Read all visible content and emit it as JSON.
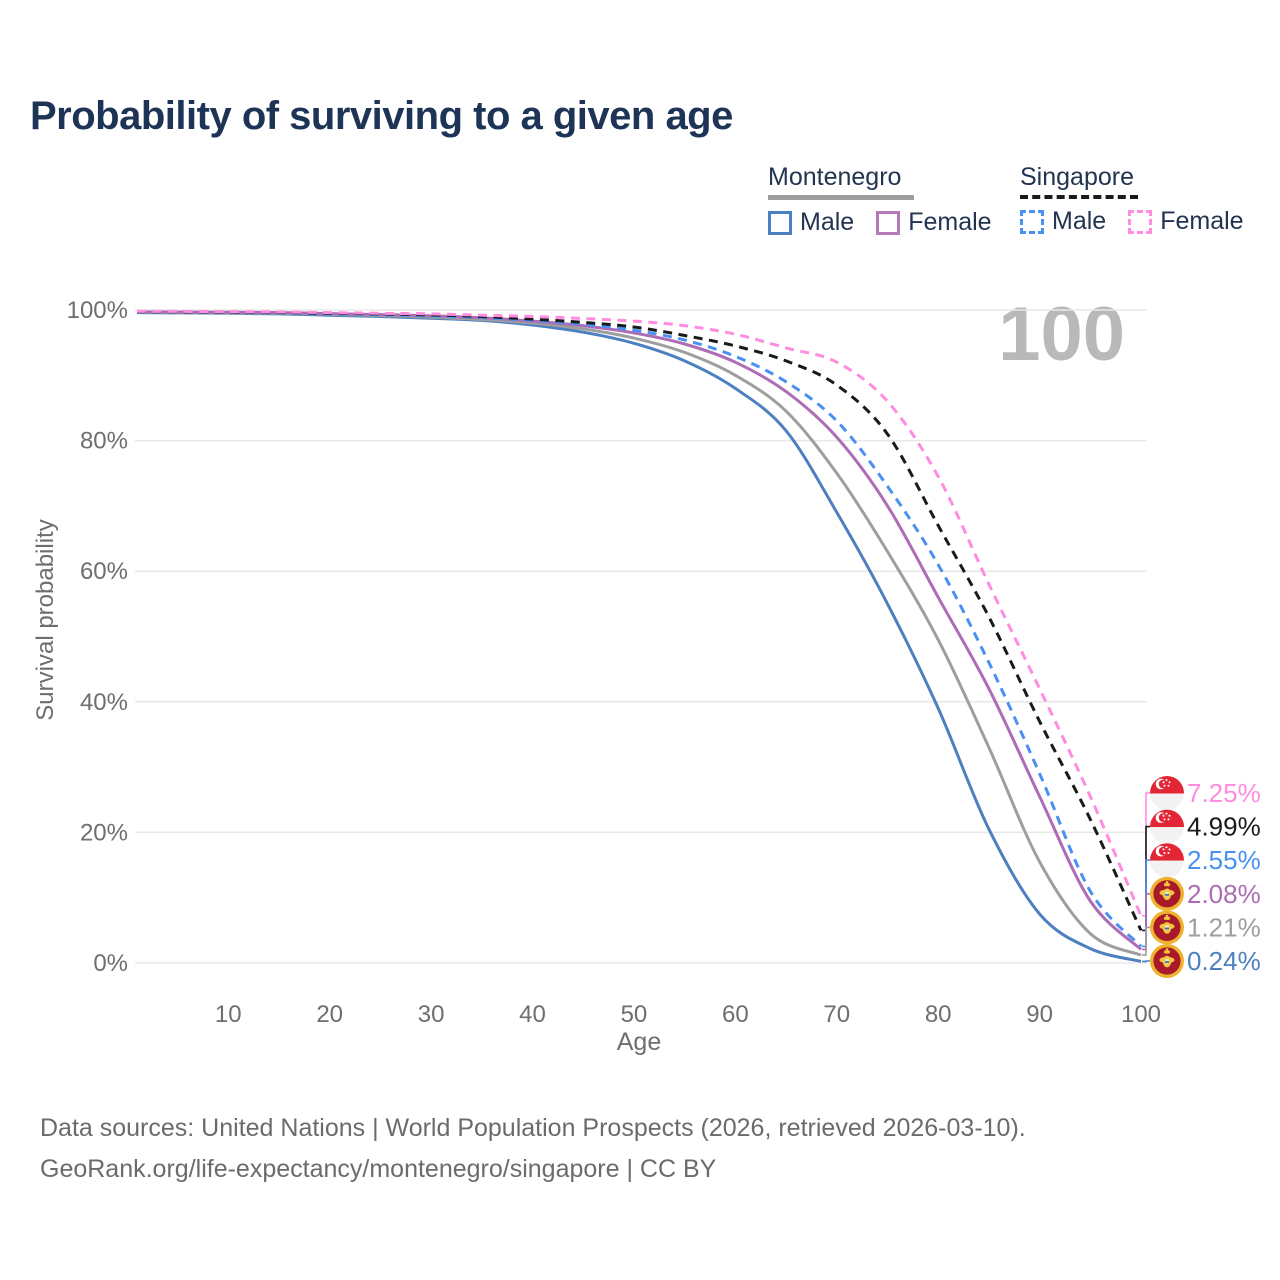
{
  "title": "Probability of surviving to a given age",
  "watermark": "100",
  "legend": {
    "groups": [
      {
        "name": "Montenegro",
        "line_style": "solid",
        "line_color": "#9e9e9e",
        "items": [
          {
            "label": "Male",
            "color": "#4d80c0",
            "dashed": false
          },
          {
            "label": "Female",
            "color": "#b579b8",
            "dashed": false
          }
        ]
      },
      {
        "name": "Singapore",
        "line_style": "dashed",
        "line_color": "#1a1a1a",
        "items": [
          {
            "label": "Male",
            "color": "#4a90f2",
            "dashed": true
          },
          {
            "label": "Female",
            "color": "#ff8ce0",
            "dashed": true
          }
        ]
      }
    ]
  },
  "chart_data": {
    "type": "line",
    "title": "Probability of surviving to a given age",
    "xlabel": "Age",
    "ylabel": "Survival probability",
    "xlim": [
      1,
      100
    ],
    "ylim": [
      0,
      100
    ],
    "x_ticks": [
      10,
      20,
      30,
      40,
      50,
      60,
      70,
      80,
      90,
      100
    ],
    "y_ticks": [
      0,
      20,
      40,
      60,
      80,
      100
    ],
    "y_tick_suffix": "%",
    "grid": "horizontal",
    "legend_position": "top-right",
    "x": [
      1,
      5,
      10,
      15,
      20,
      25,
      30,
      35,
      40,
      45,
      50,
      55,
      60,
      65,
      70,
      75,
      80,
      85,
      90,
      95,
      100
    ],
    "series": [
      {
        "name": "Montenegro Male",
        "country": "Montenegro",
        "sex": "Male",
        "color": "#4d80c0",
        "dashed": false,
        "flag": "me",
        "end_label": "0.24%",
        "values": [
          99.6,
          99.55,
          99.5,
          99.4,
          99.2,
          99.0,
          98.75,
          98.4,
          97.7,
          96.6,
          94.9,
          92.2,
          88.0,
          81.5,
          69.0,
          55.0,
          39.0,
          20.5,
          7.5,
          2.2,
          0.24
        ]
      },
      {
        "name": "Montenegro",
        "country": "Montenegro",
        "sex": "Both",
        "color": "#9e9e9e",
        "dashed": false,
        "flag": "me",
        "end_label": "1.21%",
        "values": [
          99.65,
          99.6,
          99.55,
          99.5,
          99.35,
          99.15,
          98.9,
          98.55,
          98.0,
          97.1,
          95.7,
          93.5,
          90.0,
          84.5,
          75.0,
          63.0,
          49.5,
          33.0,
          15.5,
          4.5,
          1.21
        ]
      },
      {
        "name": "Montenegro Female",
        "country": "Montenegro",
        "sex": "Female",
        "color": "#ad6cb5",
        "dashed": false,
        "flag": "me",
        "end_label": "2.08%",
        "values": [
          99.7,
          99.68,
          99.65,
          99.6,
          99.45,
          99.3,
          99.1,
          98.8,
          98.3,
          97.6,
          96.5,
          94.8,
          92.0,
          87.5,
          80.5,
          70.0,
          56.0,
          42.0,
          25.5,
          9.5,
          2.08
        ]
      },
      {
        "name": "Singapore Male",
        "country": "Singapore",
        "sex": "Male",
        "color": "#4a90f2",
        "dashed": true,
        "flag": "sg",
        "end_label": "2.55%",
        "values": [
          99.7,
          99.68,
          99.65,
          99.55,
          99.4,
          99.3,
          99.1,
          98.85,
          98.4,
          97.8,
          96.9,
          95.4,
          92.9,
          89.0,
          83.0,
          73.0,
          61.0,
          46.0,
          29.0,
          11.0,
          2.55
        ]
      },
      {
        "name": "Singapore",
        "country": "Singapore",
        "sex": "Both",
        "color": "#1a1a1a",
        "dashed": true,
        "flag": "sg",
        "end_label": "4.99%",
        "values": [
          99.75,
          99.72,
          99.7,
          99.62,
          99.5,
          99.4,
          99.25,
          99.0,
          98.6,
          98.1,
          97.4,
          96.1,
          94.5,
          92.2,
          88.5,
          81.0,
          67.0,
          53.0,
          37.0,
          22.0,
          4.99
        ]
      },
      {
        "name": "Singapore Female",
        "country": "Singapore",
        "sex": "Female",
        "color": "#ff8ce0",
        "dashed": true,
        "flag": "sg",
        "end_label": "7.25%",
        "values": [
          99.8,
          99.78,
          99.75,
          99.7,
          99.6,
          99.5,
          99.4,
          99.2,
          99.0,
          98.7,
          98.3,
          97.6,
          96.3,
          94.2,
          92.0,
          86.0,
          74.5,
          58.0,
          42.0,
          25.5,
          7.25
        ]
      }
    ]
  },
  "footer": {
    "line1": "Data sources: United Nations | World Population Prospects (2026, retrieved 2026-03-10).",
    "line2": "GeoRank.org/life-expectancy/montenegro/singapore | CC BY"
  }
}
